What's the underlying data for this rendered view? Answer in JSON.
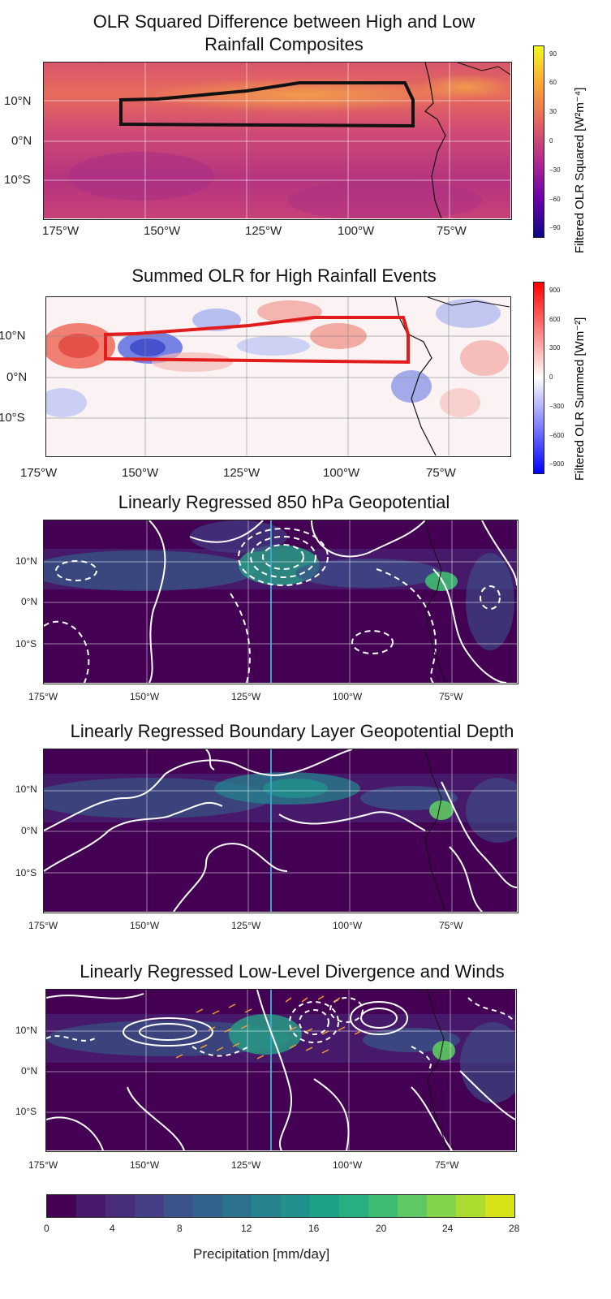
{
  "chart_data": [
    {
      "type": "heatmap",
      "title": "OLR Squared Difference between High and Low Rainfall Composites",
      "title_lines": [
        "OLR Squared Difference between High and Low",
        "Rainfall Composites"
      ],
      "x_ticks": [
        "175°W",
        "150°W",
        "125°W",
        "100°W",
        "75°W"
      ],
      "y_ticks": [
        "10°N",
        "0°N",
        "10°S"
      ],
      "colorbar": {
        "label": "Filtered OLR Squared [W²m⁻⁴]",
        "ticks": [
          "90",
          "60",
          "30",
          "0",
          "−30",
          "−60",
          "−90"
        ],
        "range": [
          -100,
          100
        ],
        "colormap": "plasma"
      },
      "outline_box": {
        "color": "#111111",
        "lon": [
          -160,
          -85
        ],
        "lat": [
          4,
          15
        ]
      }
    },
    {
      "type": "heatmap",
      "title": "Summed OLR for High Rainfall Events",
      "x_ticks": [
        "175°W",
        "150°W",
        "125°W",
        "100°W",
        "75°W"
      ],
      "y_ticks": [
        "10°N",
        "0°N",
        "10°S"
      ],
      "colorbar": {
        "label": "Filtered OLR Summed [Wm⁻²]",
        "ticks": [
          "900",
          "600",
          "300",
          "0",
          "−300",
          "−600",
          "−900"
        ],
        "range": [
          -1000,
          1000
        ],
        "colormap": "bwr"
      },
      "outline_box": {
        "color": "#e21b1b",
        "lon": [
          -160,
          -85
        ],
        "lat": [
          4,
          15
        ]
      }
    },
    {
      "type": "heatmap",
      "title": "Linearly Regressed 850 hPa Geopotential",
      "x_ticks": [
        "175°W",
        "150°W",
        "125°W",
        "100°W",
        "75°W"
      ],
      "y_ticks": [
        "10°N",
        "0°N",
        "10°S"
      ],
      "reference_lon": -120
    },
    {
      "type": "heatmap",
      "title": "Linearly Regressed Boundary Layer Geopotential Depth",
      "x_ticks": [
        "175°W",
        "150°W",
        "125°W",
        "100°W",
        "75°W"
      ],
      "y_ticks": [
        "10°N",
        "0°N",
        "10°S"
      ],
      "reference_lon": -120
    },
    {
      "type": "heatmap",
      "title": "Linearly Regressed Low-Level Divergence and Winds",
      "x_ticks": [
        "175°W",
        "150°W",
        "125°W",
        "100°W",
        "75°W"
      ],
      "y_ticks": [
        "10°N",
        "0°N",
        "10°S"
      ],
      "reference_lon": -120
    }
  ],
  "precip_colorbar": {
    "label": "Precipitation [mm/day]",
    "ticks": [
      "0",
      "4",
      "8",
      "12",
      "16",
      "20",
      "24",
      "28"
    ],
    "range": [
      0,
      28
    ],
    "colors": [
      "#440154",
      "#46196a",
      "#472d7b",
      "#433e85",
      "#3b528b",
      "#33638d",
      "#2c728e",
      "#26828e",
      "#21918c",
      "#1fa187",
      "#29af7f",
      "#3fbc73",
      "#5ec962",
      "#84d44b",
      "#addc30",
      "#d8e219"
    ]
  }
}
